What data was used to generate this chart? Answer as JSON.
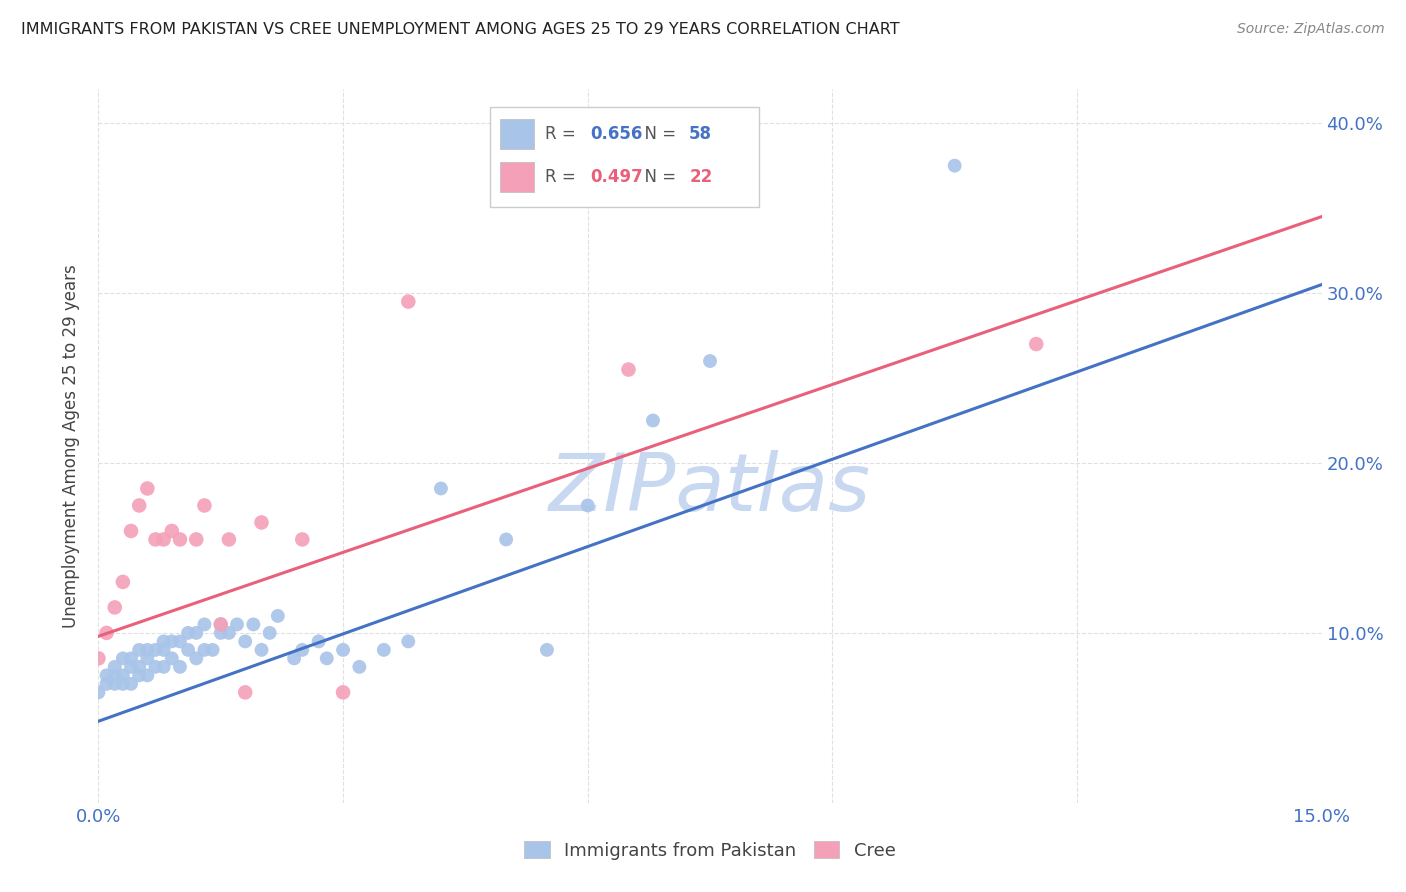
{
  "title": "IMMIGRANTS FROM PAKISTAN VS CREE UNEMPLOYMENT AMONG AGES 25 TO 29 YEARS CORRELATION CHART",
  "source": "Source: ZipAtlas.com",
  "ylabel_text": "Unemployment Among Ages 25 to 29 years",
  "xlim": [
    0.0,
    0.15
  ],
  "ylim": [
    0.0,
    0.42
  ],
  "xticks": [
    0.0,
    0.03,
    0.06,
    0.09,
    0.12,
    0.15
  ],
  "yticks": [
    0.0,
    0.1,
    0.2,
    0.3,
    0.4
  ],
  "xtick_labels": [
    "0.0%",
    "",
    "",
    "",
    "",
    "15.0%"
  ],
  "ytick_labels": [
    "",
    "10.0%",
    "20.0%",
    "30.0%",
    "40.0%"
  ],
  "background_color": "#ffffff",
  "grid_color": "#e0e0e0",
  "watermark_text": "ZIPatlas",
  "watermark_color": "#c8d8f0",
  "pakistan_scatter_color": "#a8c4e8",
  "pakistan_line_color": "#4472c4",
  "pakistan_label": "Immigrants from Pakistan",
  "pakistan_R": "0.656",
  "pakistan_N": "58",
  "cree_scatter_color": "#f4a0b8",
  "cree_line_color": "#e8607a",
  "cree_label": "Cree",
  "cree_R": "0.497",
  "cree_N": "22",
  "pakistan_x": [
    0.0,
    0.001,
    0.001,
    0.002,
    0.002,
    0.002,
    0.003,
    0.003,
    0.003,
    0.004,
    0.004,
    0.004,
    0.005,
    0.005,
    0.005,
    0.006,
    0.006,
    0.006,
    0.007,
    0.007,
    0.008,
    0.008,
    0.008,
    0.009,
    0.009,
    0.01,
    0.01,
    0.011,
    0.011,
    0.012,
    0.012,
    0.013,
    0.013,
    0.014,
    0.015,
    0.015,
    0.016,
    0.017,
    0.018,
    0.019,
    0.02,
    0.021,
    0.022,
    0.024,
    0.025,
    0.027,
    0.028,
    0.03,
    0.032,
    0.035,
    0.038,
    0.042,
    0.05,
    0.055,
    0.06,
    0.068,
    0.075,
    0.105
  ],
  "pakistan_y": [
    0.065,
    0.07,
    0.075,
    0.07,
    0.075,
    0.08,
    0.07,
    0.075,
    0.085,
    0.07,
    0.08,
    0.085,
    0.075,
    0.08,
    0.09,
    0.075,
    0.085,
    0.09,
    0.08,
    0.09,
    0.08,
    0.09,
    0.095,
    0.085,
    0.095,
    0.08,
    0.095,
    0.09,
    0.1,
    0.085,
    0.1,
    0.09,
    0.105,
    0.09,
    0.1,
    0.105,
    0.1,
    0.105,
    0.095,
    0.105,
    0.09,
    0.1,
    0.11,
    0.085,
    0.09,
    0.095,
    0.085,
    0.09,
    0.08,
    0.09,
    0.095,
    0.185,
    0.155,
    0.09,
    0.175,
    0.225,
    0.26,
    0.375
  ],
  "pakistan_line_x": [
    0.0,
    0.15
  ],
  "pakistan_line_y": [
    0.048,
    0.305
  ],
  "cree_x": [
    0.0,
    0.001,
    0.002,
    0.003,
    0.004,
    0.005,
    0.006,
    0.007,
    0.008,
    0.009,
    0.01,
    0.012,
    0.013,
    0.015,
    0.016,
    0.018,
    0.02,
    0.025,
    0.03,
    0.038,
    0.065,
    0.115
  ],
  "cree_y": [
    0.085,
    0.1,
    0.115,
    0.13,
    0.16,
    0.175,
    0.185,
    0.155,
    0.155,
    0.16,
    0.155,
    0.155,
    0.175,
    0.105,
    0.155,
    0.065,
    0.165,
    0.155,
    0.065,
    0.295,
    0.255,
    0.27
  ],
  "cree_line_x": [
    0.0,
    0.15
  ],
  "cree_line_y": [
    0.098,
    0.345
  ]
}
